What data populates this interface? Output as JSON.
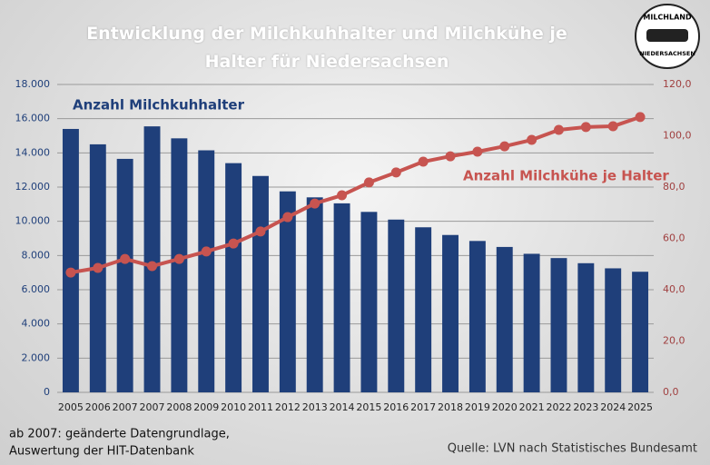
{
  "chart_data": {
    "type": "bar-line",
    "title": "Entwicklung der Milchkuhhalter und Milchkühe je Halter für Niedersachsen",
    "categories": [
      "2005",
      "2006",
      "2007",
      "2007",
      "2008",
      "2009",
      "2010",
      "2011",
      "2012",
      "2013",
      "2014",
      "2015",
      "2016",
      "2017",
      "2018",
      "2019",
      "2020",
      "2021",
      "2022",
      "2023",
      "2024",
      "2025"
    ],
    "series": [
      {
        "name": "Anzahl Milchkuhhalter",
        "color": "#1f3f7a",
        "type": "bar",
        "values": [
          15400,
          14500,
          13650,
          15550,
          14850,
          14150,
          13400,
          12650,
          11750,
          11400,
          11050,
          10550,
          10100,
          9650,
          9200,
          8850,
          8500,
          8100,
          7850,
          7550,
          7250,
          7050
        ]
      },
      {
        "name": "Anzahl Milchkühe je Halter",
        "color": "#c75450",
        "type": "line",
        "axis": "y2",
        "values": [
          46.7,
          48.5,
          52,
          49.2,
          52,
          54.9,
          58,
          62.7,
          68.3,
          73.6,
          76.8,
          81.8,
          85.7,
          89.9,
          92,
          93.8,
          95.9,
          98.4,
          102.3,
          103.4,
          103.7,
          107.3
        ]
      }
    ],
    "ylim": [
      0,
      18000
    ],
    "yticks": [
      0,
      {
        "value": 2000,
        "label": "2.000"
      },
      {
        "value": 4000,
        "label": "4.000"
      },
      {
        "value": 6000,
        "label": "6.000"
      },
      {
        "value": 8000,
        "label": "8.000"
      },
      {
        "value": 10000,
        "label": "10.000"
      },
      {
        "value": 12000,
        "label": "12.000"
      },
      {
        "value": 14000,
        "label": "14.000"
      },
      {
        "value": 16000,
        "label": "16.000"
      },
      {
        "value": 18000,
        "label": "18.000"
      }
    ],
    "y2lim": [
      0,
      120
    ],
    "y2ticks": [
      {
        "value": 0,
        "label": "0,0"
      },
      {
        "value": 20,
        "label": "20,0"
      },
      {
        "value": 40,
        "label": "40,0"
      },
      {
        "value": 60,
        "label": "60,0"
      },
      {
        "value": 80,
        "label": "80,0"
      },
      {
        "value": 100,
        "label": "100,0"
      },
      {
        "value": 120,
        "label": "120,0"
      }
    ],
    "grid": true,
    "notes": [
      "ab 2007: geänderte Datengrundlage,",
      "Auswertung der HIT-Datenbank"
    ],
    "source": "Quelle:  LVN nach Statistisches Bundesamt",
    "logo_text": [
      "MILCHLAND",
      "NIEDERSACHSEN"
    ]
  }
}
